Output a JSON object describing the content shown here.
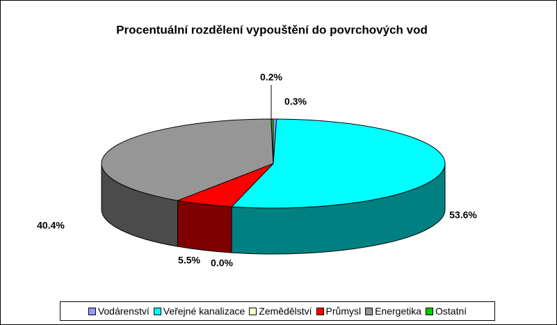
{
  "chart_data": {
    "type": "pie",
    "title": "Procentuální rozdělení vypouštění do povrchových vod",
    "categories": [
      "Vodárenství",
      "Veřejné kanalizace",
      "Zemědělství",
      "Průmysl",
      "Energetika",
      "Ostatní"
    ],
    "values": [
      0.3,
      53.6,
      0.0,
      5.5,
      40.4,
      0.2
    ],
    "value_labels": [
      "0.3%",
      "53.6%",
      "0.0%",
      "5.5%",
      "40.4%",
      "0.2%"
    ],
    "colors": [
      "#9999ff",
      "#00ffff",
      "#ffffcc",
      "#ff0000",
      "#969696",
      "#00cc00"
    ],
    "legend": "bottom"
  }
}
